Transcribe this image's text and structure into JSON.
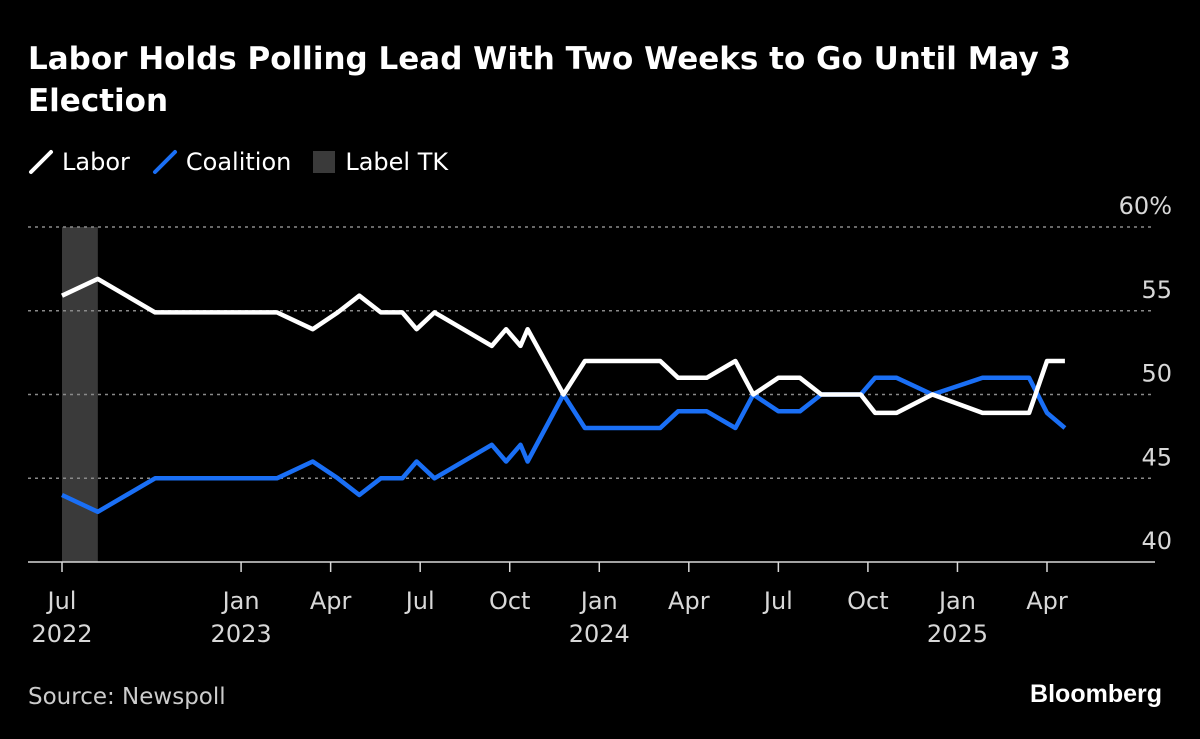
{
  "chart_data": {
    "type": "line",
    "title": "Labor Holds Polling Lead With Two Weeks to Go Until May 3 Election",
    "ylim": [
      40,
      60
    ],
    "yticks": [
      {
        "value": 60,
        "label": "60%"
      },
      {
        "value": 55,
        "label": "55"
      },
      {
        "value": 50,
        "label": "50"
      },
      {
        "value": 45,
        "label": "45"
      },
      {
        "value": 40,
        "label": "40"
      }
    ],
    "xlim": [
      2022.4,
      2025.6
    ],
    "xticks": [
      {
        "x": 2022.5,
        "line1": "Jul",
        "line2": "2022"
      },
      {
        "x": 2023.0,
        "line1": "Jan",
        "line2": "2023"
      },
      {
        "x": 2023.25,
        "line1": "Apr",
        "line2": ""
      },
      {
        "x": 2023.5,
        "line1": "Jul",
        "line2": ""
      },
      {
        "x": 2023.75,
        "line1": "Oct",
        "line2": ""
      },
      {
        "x": 2024.0,
        "line1": "Jan",
        "line2": "2024"
      },
      {
        "x": 2024.25,
        "line1": "Apr",
        "line2": ""
      },
      {
        "x": 2024.5,
        "line1": "Jul",
        "line2": ""
      },
      {
        "x": 2024.75,
        "line1": "Oct",
        "line2": ""
      },
      {
        "x": 2025.0,
        "line1": "Jan",
        "line2": "2025"
      },
      {
        "x": 2025.25,
        "line1": "Apr",
        "line2": ""
      }
    ],
    "shaded_band": {
      "name": "Label TK",
      "x_start": 2022.5,
      "x_end": 2022.6,
      "color": "#3a3a3a"
    },
    "series": [
      {
        "name": "Labor",
        "color": "#ffffff",
        "x": [
          2022.5,
          2022.6,
          2022.76,
          2023.1,
          2023.2,
          2023.27,
          2023.33,
          2023.39,
          2023.45,
          2023.49,
          2023.54,
          2023.7,
          2023.74,
          2023.78,
          2023.8,
          2023.9,
          2023.96,
          2024.06,
          2024.17,
          2024.22,
          2024.3,
          2024.38,
          2024.43,
          2024.5,
          2024.56,
          2024.62,
          2024.73,
          2024.77,
          2024.83,
          2024.93,
          2025.07,
          2025.2,
          2025.25,
          2025.3
        ],
        "values": [
          55.9,
          56.9,
          54.9,
          54.9,
          53.9,
          54.9,
          55.9,
          54.9,
          54.9,
          53.9,
          54.9,
          52.9,
          53.9,
          52.9,
          53.9,
          50.0,
          52.0,
          52.0,
          52.0,
          51.0,
          51.0,
          52.0,
          50.0,
          51.0,
          51.0,
          50.0,
          50.0,
          48.9,
          48.9,
          50.0,
          48.9,
          48.9,
          52.0,
          52.0
        ]
      },
      {
        "name": "Coalition",
        "color": "#1a6ff5",
        "x": [
          2022.5,
          2022.6,
          2022.76,
          2023.1,
          2023.2,
          2023.27,
          2023.33,
          2023.39,
          2023.45,
          2023.49,
          2023.54,
          2023.7,
          2023.74,
          2023.78,
          2023.8,
          2023.9,
          2023.96,
          2024.06,
          2024.17,
          2024.22,
          2024.3,
          2024.38,
          2024.43,
          2024.5,
          2024.56,
          2024.62,
          2024.73,
          2024.77,
          2024.83,
          2024.93,
          2025.07,
          2025.2,
          2025.25,
          2025.3
        ],
        "values": [
          44.0,
          43.0,
          45.0,
          45.0,
          46.0,
          45.0,
          44.0,
          45.0,
          45.0,
          46.0,
          45.0,
          47.0,
          46.0,
          47.0,
          46.0,
          50.0,
          48.0,
          48.0,
          48.0,
          49.0,
          49.0,
          48.0,
          50.0,
          49.0,
          49.0,
          50.0,
          50.0,
          51.0,
          51.0,
          50.0,
          51.0,
          51.0,
          48.9,
          48.0
        ]
      }
    ]
  },
  "legend": {
    "labor": "Labor",
    "coalition": "Coalition",
    "band": "Label TK"
  },
  "footer": {
    "source": "Source: Newspoll",
    "brand": "Bloomberg"
  }
}
